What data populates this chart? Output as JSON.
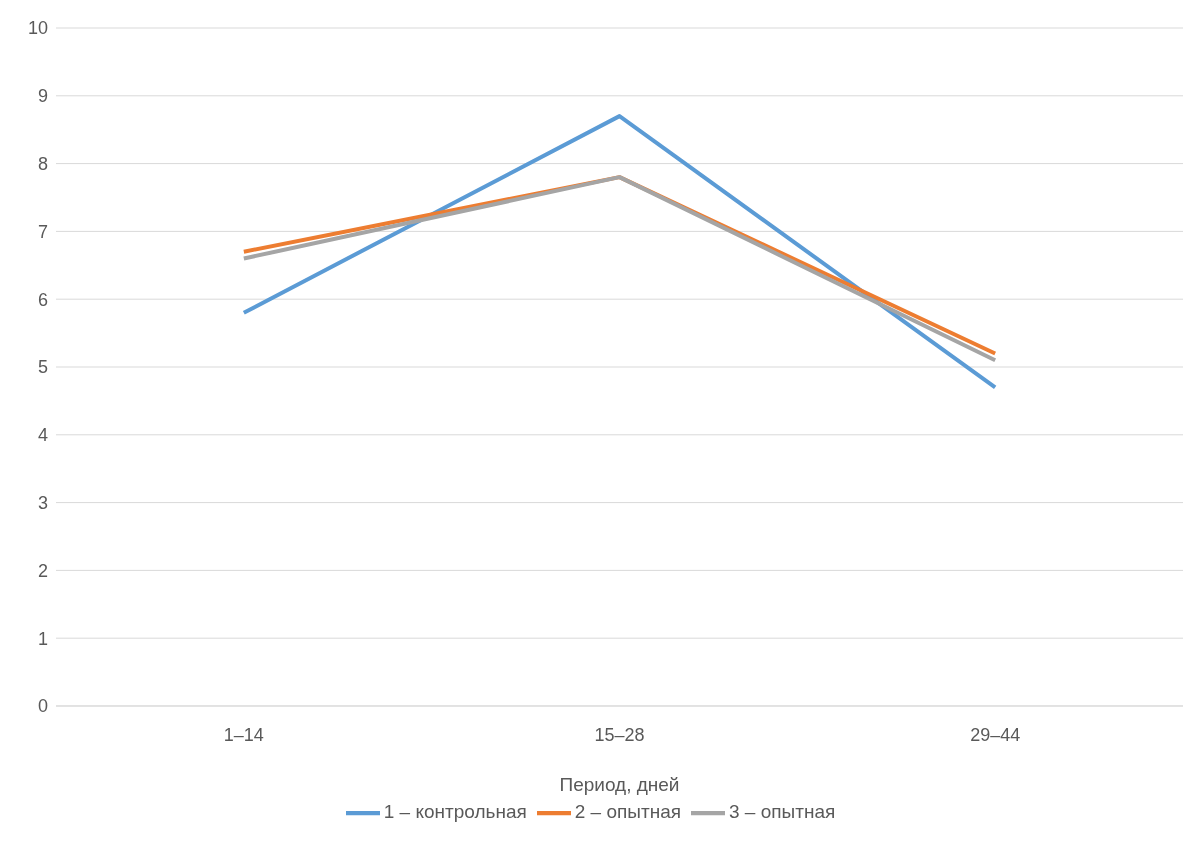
{
  "chart_data": {
    "type": "line",
    "xlabel": "Период, дней",
    "categories": [
      "1–14",
      "15–28",
      "29–44"
    ],
    "series": [
      {
        "name": "1 – контрольная",
        "color": "#5b9bd5",
        "values": [
          5.8,
          8.7,
          4.7
        ]
      },
      {
        "name": "2 – опытная",
        "color": "#ed7d31",
        "values": [
          6.7,
          7.8,
          5.2
        ]
      },
      {
        "name": "3 – опытная",
        "color": "#a5a5a5",
        "values": [
          6.6,
          7.8,
          5.1
        ]
      }
    ],
    "ylim": [
      0,
      10
    ],
    "yticks": [
      0,
      1,
      2,
      3,
      4,
      5,
      6,
      7,
      8,
      9,
      10
    ],
    "grid": "y",
    "legend": "bottom",
    "marker": "none",
    "line_style": "solid"
  }
}
